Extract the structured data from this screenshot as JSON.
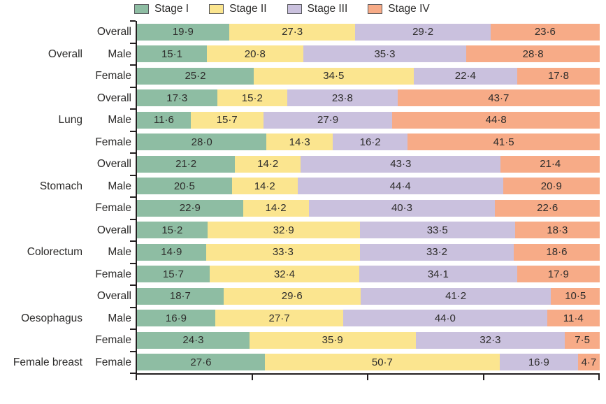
{
  "legend": {
    "items": [
      {
        "label": "Stage I",
        "color": "#8ebda3"
      },
      {
        "label": "Stage II",
        "color": "#fbe58f"
      },
      {
        "label": "Stage III",
        "color": "#cac1de"
      },
      {
        "label": "Stage IV",
        "color": "#f7ab87"
      }
    ]
  },
  "chart_data": {
    "type": "bar",
    "stacked": true,
    "orientation": "horizontal",
    "title": "",
    "xlabel": "",
    "ylabel": "",
    "xlim": [
      0,
      100
    ],
    "x_ticks": [
      0,
      25,
      50,
      75,
      100
    ],
    "x_tick_labels_visible": false,
    "grid": false,
    "legend_position": "top",
    "series": [
      "Stage I",
      "Stage II",
      "Stage III",
      "Stage IV"
    ],
    "series_colors": [
      "#8ebda3",
      "#fbe58f",
      "#cac1de",
      "#f7ab87"
    ],
    "groups": [
      {
        "label": "Overall",
        "rows": [
          {
            "label": "Overall",
            "values": [
              19.9,
              27.3,
              29.2,
              23.6
            ],
            "display": [
              "19·9",
              "27·3",
              "29·2",
              "23·6"
            ]
          },
          {
            "label": "Male",
            "values": [
              15.1,
              20.8,
              35.3,
              28.8
            ],
            "display": [
              "15·1",
              "20·8",
              "35·3",
              "28·8"
            ]
          },
          {
            "label": "Female",
            "values": [
              25.2,
              34.5,
              22.4,
              17.8
            ],
            "display": [
              "25·2",
              "34·5",
              "22·4",
              "17·8"
            ]
          }
        ]
      },
      {
        "label": "Lung",
        "rows": [
          {
            "label": "Overall",
            "values": [
              17.3,
              15.2,
              23.8,
              43.7
            ],
            "display": [
              "17·3",
              "15·2",
              "23·8",
              "43·7"
            ]
          },
          {
            "label": "Male",
            "values": [
              11.6,
              15.7,
              27.9,
              44.8
            ],
            "display": [
              "11·6",
              "15·7",
              "27·9",
              "44·8"
            ]
          },
          {
            "label": "Female",
            "values": [
              28.0,
              14.3,
              16.2,
              41.5
            ],
            "display": [
              "28·0",
              "14·3",
              "16·2",
              "41·5"
            ]
          }
        ]
      },
      {
        "label": "Stomach",
        "rows": [
          {
            "label": "Overall",
            "values": [
              21.2,
              14.2,
              43.3,
              21.4
            ],
            "display": [
              "21·2",
              "14·2",
              "43·3",
              "21·4"
            ]
          },
          {
            "label": "Male",
            "values": [
              20.5,
              14.2,
              44.4,
              20.9
            ],
            "display": [
              "20·5",
              "14·2",
              "44·4",
              "20·9"
            ]
          },
          {
            "label": "Female",
            "values": [
              22.9,
              14.2,
              40.3,
              22.6
            ],
            "display": [
              "22·9",
              "14·2",
              "40·3",
              "22·6"
            ]
          }
        ]
      },
      {
        "label": "Colorectum",
        "rows": [
          {
            "label": "Overall",
            "values": [
              15.2,
              32.9,
              33.5,
              18.3
            ],
            "display": [
              "15·2",
              "32·9",
              "33·5",
              "18·3"
            ]
          },
          {
            "label": "Male",
            "values": [
              14.9,
              33.3,
              33.2,
              18.6
            ],
            "display": [
              "14·9",
              "33·3",
              "33·2",
              "18·6"
            ]
          },
          {
            "label": "Female",
            "values": [
              15.7,
              32.4,
              34.1,
              17.9
            ],
            "display": [
              "15·7",
              "32·4",
              "34·1",
              "17·9"
            ]
          }
        ]
      },
      {
        "label": "Oesophagus",
        "rows": [
          {
            "label": "Overall",
            "values": [
              18.7,
              29.6,
              41.2,
              10.5
            ],
            "display": [
              "18·7",
              "29·6",
              "41·2",
              "10·5"
            ]
          },
          {
            "label": "Male",
            "values": [
              16.9,
              27.7,
              44.0,
              11.4
            ],
            "display": [
              "16·9",
              "27·7",
              "44·0",
              "11·4"
            ]
          },
          {
            "label": "Female",
            "values": [
              24.3,
              35.9,
              32.3,
              7.5
            ],
            "display": [
              "24·3",
              "35·9",
              "32·3",
              "7·5"
            ]
          }
        ]
      },
      {
        "label": "Female breast",
        "rows": [
          {
            "label": "Female",
            "values": [
              27.6,
              50.7,
              16.9,
              4.7
            ],
            "display": [
              "27·6",
              "50·7",
              "16·9",
              "4·7"
            ]
          }
        ]
      }
    ]
  },
  "colors": {
    "axis": "#231f20",
    "text": "#2b2a29",
    "background": "#ffffff",
    "swatch_border": "#55565a"
  }
}
